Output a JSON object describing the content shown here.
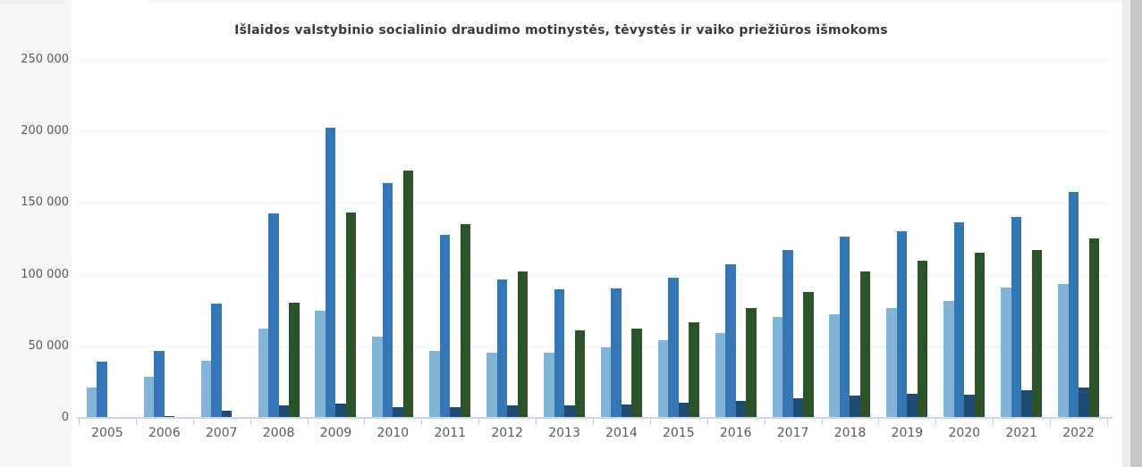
{
  "page": {
    "title": "Išlaidos valstybinio socialinio draudimo motinystės, tėvystės ir vaiko priežiūros išmokoms"
  },
  "chart_data": {
    "type": "bar",
    "title": "Išlaidos valstybinio socialinio draudimo motinystės, tėvystės ir vaiko priežiūros išmokoms",
    "categories": [
      "2005",
      "2006",
      "2007",
      "2008",
      "2009",
      "2010",
      "2011",
      "2012",
      "2013",
      "2014",
      "2015",
      "2016",
      "2017",
      "2018",
      "2019",
      "2020",
      "2021",
      "2022"
    ],
    "series": [
      {
        "name": "light-blue-series",
        "color": "#82b4d6",
        "values": [
          21500,
          28500,
          40000,
          62500,
          75000,
          57000,
          46500,
          45500,
          45500,
          49500,
          54000,
          59500,
          70500,
          72500,
          76500,
          81500,
          91000,
          93500
        ]
      },
      {
        "name": "medium-blue-series",
        "color": "#3377b5",
        "values": [
          39500,
          47000,
          80000,
          142500,
          202500,
          164000,
          127500,
          96500,
          89500,
          90500,
          98000,
          107500,
          117500,
          126500,
          130500,
          136500,
          140500,
          158000
        ]
      },
      {
        "name": "dark-navy-series",
        "color": "#1f4a72",
        "values": [
          0,
          1500,
          5000,
          9000,
          10000,
          7500,
          7500,
          8500,
          8500,
          9500,
          10500,
          12000,
          14000,
          15500,
          17000,
          16000,
          19500,
          21000
        ]
      },
      {
        "name": "dark-green-series",
        "color": "#2c5229",
        "values": [
          0,
          0,
          0,
          80500,
          143500,
          172500,
          135500,
          102000,
          61000,
          62500,
          66500,
          76500,
          88000,
          102000,
          110000,
          115500,
          117500,
          125000
        ]
      }
    ],
    "xlabel": "",
    "ylabel": "",
    "ylim": [
      0,
      250000
    ],
    "ytick_interval": 50000,
    "ytick_labels": [
      "0",
      "50 000",
      "100 000",
      "150 000",
      "200 000",
      "250 000"
    ],
    "grid": "horizontal",
    "legend": "none"
  },
  "colors": {
    "grid_line": "#eeeeee",
    "axis_line": "#ccd7ec",
    "tick_mark": "#c3d0e8",
    "axis_label_text": "#5a5a5a",
    "title_text": "#3a3a3a",
    "left_margin_bg": "#f6f6f7",
    "scrollbar_track": "#ececee",
    "scrollbar_thumb": "#c8c8ca"
  }
}
